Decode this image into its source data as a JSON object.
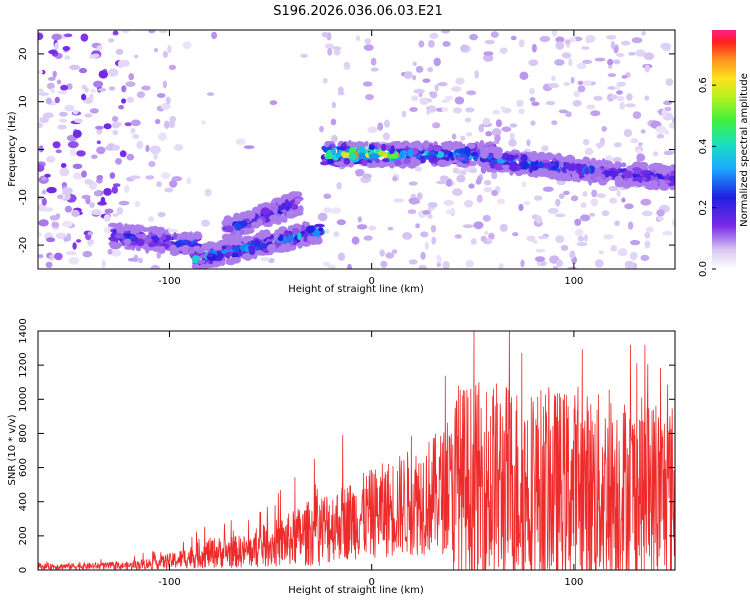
{
  "title": "S196.2026.036.06.03.E21",
  "colors": {
    "snr_line": "#ee2b2b",
    "axis": "#000000",
    "background": "#ffffff"
  },
  "chart_data": [
    {
      "type": "heatmap",
      "xlabel": "Height of straight line (km)",
      "ylabel": "Frequency (Hz)",
      "xlim": [
        -165,
        150
      ],
      "ylim": [
        -25,
        25
      ],
      "xticks": [
        -100,
        0,
        100
      ],
      "yticks": [
        -20,
        -10,
        0,
        10,
        20
      ],
      "colorbar": {
        "label": "Normalized spectral amplitude",
        "range": [
          0.0,
          0.78
        ],
        "ticks": [
          "0.0",
          "0.2",
          "0.4",
          "0.6"
        ],
        "tick_values": [
          0.0,
          0.2,
          0.4,
          0.6
        ]
      },
      "ridges": [
        {
          "x_start": -128,
          "x_end": -85,
          "y_start": -18,
          "y_end": -20,
          "peak": 0.32
        },
        {
          "x_start": -88,
          "x_end": -25,
          "y_start": -23,
          "y_end": -17,
          "peak": 0.42
        },
        {
          "x_start": -72,
          "x_end": -35,
          "y_start": -17,
          "y_end": -11,
          "peak": 0.3
        },
        {
          "x_start": -24,
          "x_end": 20,
          "y_start": -1,
          "y_end": -1,
          "peak": 0.78
        },
        {
          "x_start": 15,
          "x_end": 60,
          "y_start": -1,
          "y_end": -1,
          "peak": 0.45
        },
        {
          "x_start": 55,
          "x_end": 100,
          "y_start": -2,
          "y_end": -4,
          "peak": 0.4
        },
        {
          "x_start": 95,
          "x_end": 150,
          "y_start": -4,
          "y_end": -6,
          "peak": 0.3
        }
      ]
    },
    {
      "type": "line",
      "xlabel": "Height of straight line (km)",
      "ylabel": "SNR (10 * v/v)",
      "xlim": [
        -165,
        150
      ],
      "ylim": [
        0,
        1400
      ],
      "xticks": [
        -100,
        0,
        100
      ],
      "yticks": [
        0,
        200,
        400,
        600,
        800,
        1000,
        1200,
        1400
      ],
      "series": [
        {
          "name": "SNR",
          "envelope_x": [
            -165,
            -120,
            -100,
            -80,
            -60,
            -40,
            -20,
            0,
            20,
            40,
            60,
            80,
            100,
            120,
            150
          ],
          "envelope_y": [
            20,
            25,
            50,
            100,
            110,
            180,
            260,
            330,
            400,
            480,
            500,
            480,
            470,
            460,
            440
          ]
        }
      ]
    }
  ]
}
